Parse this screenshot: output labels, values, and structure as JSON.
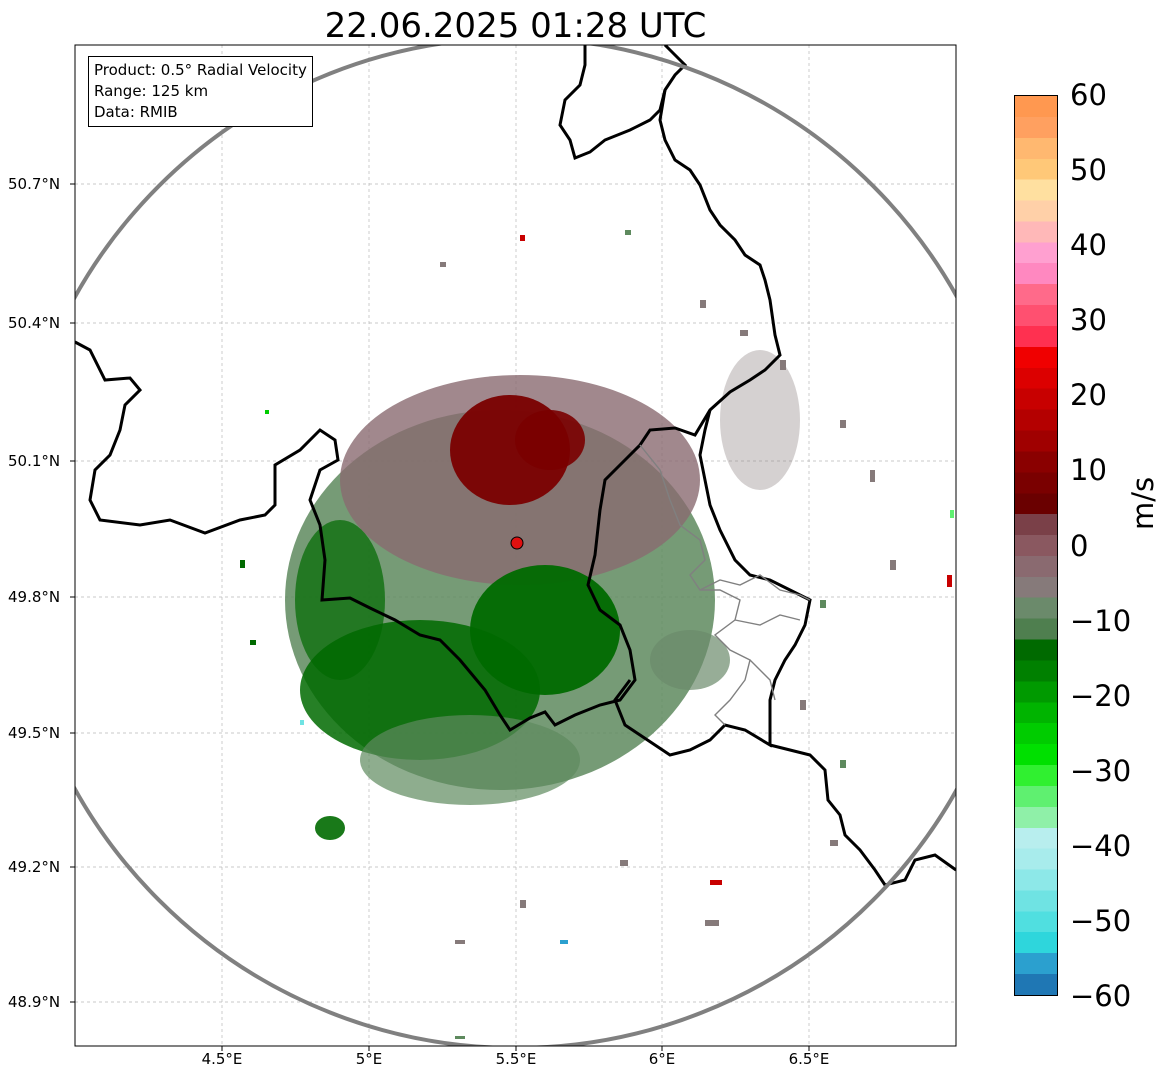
{
  "title": "22.06.2025 01:28 UTC",
  "info": {
    "product": "Product: 0.5° Radial Velocity",
    "range": "Range: 125 km",
    "source": "Data: RMIB"
  },
  "axes": {
    "lat_ticks": [
      "50.7°N",
      "50.4°N",
      "50.1°N",
      "49.8°N",
      "49.5°N",
      "49.2°N",
      "48.9°N"
    ],
    "lon_ticks": [
      "4.5°E",
      "5°E",
      "5.5°E",
      "6°E",
      "6.5°E"
    ]
  },
  "colorbar": {
    "unit": "m/s",
    "ticks": [
      "60",
      "50",
      "40",
      "30",
      "20",
      "10",
      "0",
      "−10",
      "−20",
      "−30",
      "−40",
      "−50",
      "−60"
    ],
    "colors": [
      "#1f77b4",
      "#2ba0cf",
      "#2ed6dc",
      "#50dfe0",
      "#6fe3e3",
      "#8de8e8",
      "#a8ecec",
      "#b8eeee",
      "#8ff0a8",
      "#5ff070",
      "#30f030",
      "#00e000",
      "#00cc00",
      "#00b400",
      "#009a00",
      "#008000",
      "#006a00",
      "#4f7f4f",
      "#6b8a6b",
      "#867a7a",
      "#8a6a70",
      "#8a5860",
      "#7a4048",
      "#6a0000",
      "#7a0000",
      "#8a0000",
      "#a00000",
      "#b40000",
      "#c80000",
      "#dc0000",
      "#f00000",
      "#ff3050",
      "#ff5070",
      "#ff6a8a",
      "#ff88c0",
      "#ffa0d0",
      "#ffb8b8",
      "#ffd0a8",
      "#ffe0a0",
      "#ffc878",
      "#ffb870",
      "#ffa060",
      "#ff9850"
    ]
  },
  "colors": {
    "range_ring": "#808080",
    "border": "#000000",
    "province": "#808080",
    "radar_site": "#e01010"
  }
}
